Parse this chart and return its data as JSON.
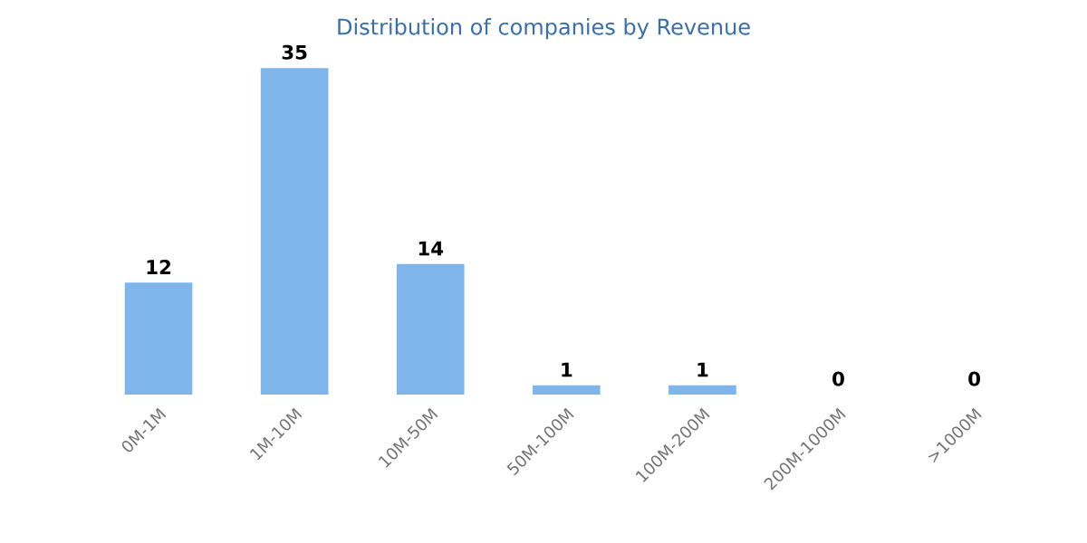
{
  "chart_data": {
    "type": "bar",
    "title": "Distribution of companies by Revenue",
    "categories": [
      "0M-1M",
      "1M-10M",
      "10M-50M",
      "50M-100M",
      "100M-200M",
      "200M-1000M",
      ">1000M"
    ],
    "values": [
      12,
      35,
      14,
      1,
      1,
      0,
      0
    ],
    "color": "#7eb6ec",
    "data_labels": true,
    "tick_labels": "x"
  }
}
